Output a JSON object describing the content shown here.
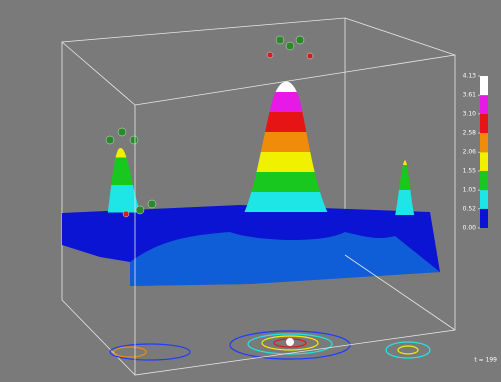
{
  "chart_data": {
    "type": "surface3d",
    "colorbar": {
      "ticks": [
        {
          "value": 0,
          "label": "0.00"
        },
        0.52,
        1.03,
        1.55,
        2.06,
        2.58,
        {
          "value": 3.1,
          "label": "3.10"
        },
        3.61,
        4.13
      ],
      "colors": [
        "#0a14d2",
        "#1ee6e6",
        "#19c81e",
        "#f0f000",
        "#f08c0a",
        "#e61414",
        "#e619e6",
        "#ffffff"
      ]
    },
    "annotation": "t = 199"
  }
}
